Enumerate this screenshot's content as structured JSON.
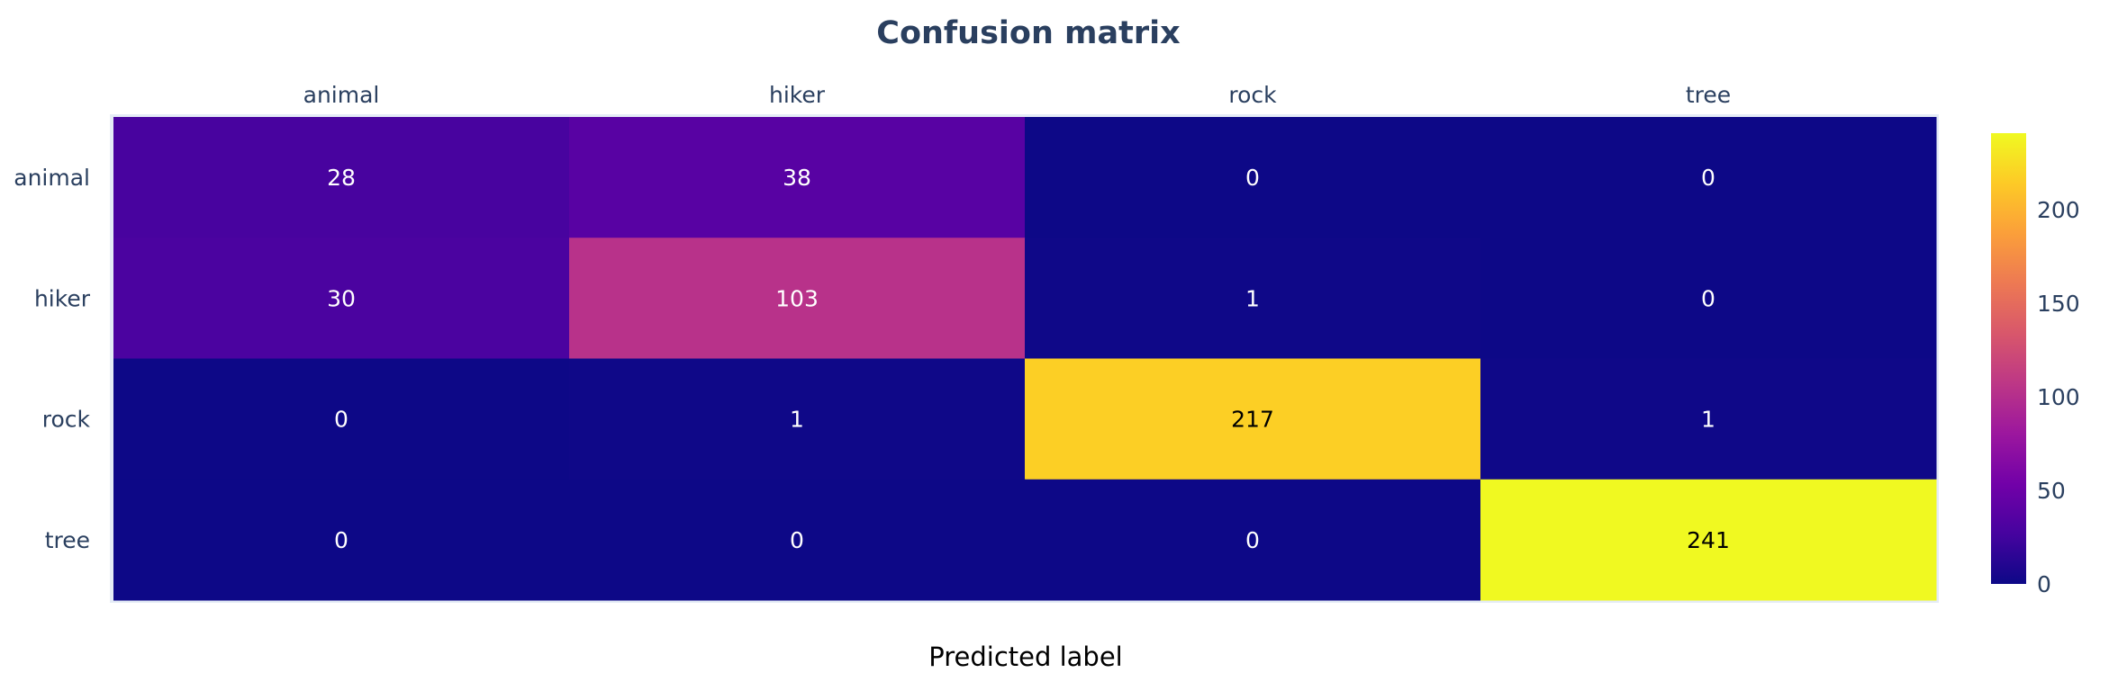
{
  "chart_data": {
    "type": "heatmap",
    "title": "Confusion matrix",
    "xlabel": "Predicted label",
    "ylabel": "",
    "x_categories": [
      "animal",
      "hiker",
      "rock",
      "tree"
    ],
    "y_categories": [
      "animal",
      "hiker",
      "rock",
      "tree"
    ],
    "values": [
      [
        28,
        38,
        0,
        0
      ],
      [
        30,
        103,
        1,
        0
      ],
      [
        0,
        1,
        217,
        1
      ],
      [
        0,
        0,
        0,
        241
      ]
    ],
    "colorscale": "Plasma",
    "colorbar": {
      "min": 0,
      "max": 241,
      "ticks": [
        0,
        50,
        100,
        150,
        200
      ]
    },
    "x_axis_side": "top",
    "legend": "colorbar-right"
  }
}
